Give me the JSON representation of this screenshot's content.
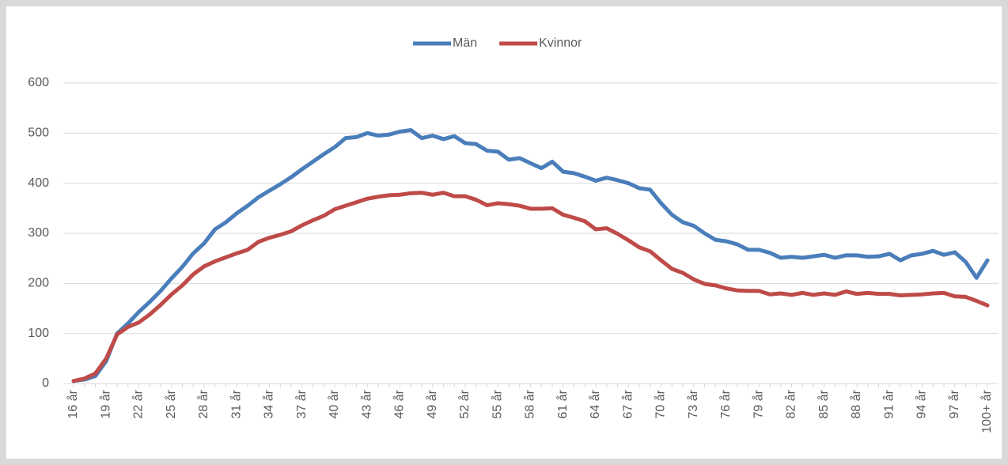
{
  "chart_data": {
    "type": "line",
    "categories": [
      "16 år",
      null,
      null,
      "19 år",
      null,
      null,
      "22 år",
      null,
      null,
      "25 år",
      null,
      null,
      "28 år",
      null,
      null,
      "31 år",
      null,
      null,
      "34 år",
      null,
      null,
      "37 år",
      null,
      null,
      "40 år",
      null,
      null,
      "43 år",
      null,
      null,
      "46 år",
      null,
      null,
      "49 år",
      null,
      null,
      "52 år",
      null,
      null,
      "55 år",
      null,
      null,
      "58 år",
      null,
      null,
      "61 år",
      null,
      null,
      "64 år",
      null,
      null,
      "67 år",
      null,
      null,
      "70 år",
      null,
      null,
      "73 år",
      null,
      null,
      "76 år",
      null,
      null,
      "79 år",
      null,
      null,
      "82 år",
      null,
      null,
      "85 år",
      null,
      null,
      "88 år",
      null,
      null,
      "91 år",
      null,
      null,
      "94 år",
      null,
      null,
      "97 år",
      null,
      null,
      "100+ år"
    ],
    "series": [
      {
        "name": "Män",
        "color": "#4a7ebb",
        "values": [
          5,
          8,
          15,
          45,
          100,
          120,
          143,
          163,
          185,
          210,
          233,
          260,
          280,
          308,
          322,
          340,
          355,
          372,
          385,
          398,
          412,
          428,
          443,
          458,
          472,
          490,
          492,
          500,
          495,
          497,
          503,
          506,
          490,
          495,
          488,
          494,
          480,
          478,
          465,
          463,
          447,
          450,
          440,
          430,
          443,
          423,
          420,
          413,
          405,
          411,
          406,
          400,
          390,
          387,
          360,
          337,
          322,
          315,
          300,
          287,
          284,
          278,
          267,
          267,
          261,
          251,
          253,
          251,
          254,
          257,
          251,
          256,
          256,
          253,
          254,
          259,
          246,
          256,
          259,
          265,
          257,
          262,
          243,
          211,
          246
        ]
      },
      {
        "name": "Kvinnor",
        "color": "#be4b48",
        "values": [
          5,
          10,
          20,
          50,
          98,
          113,
          122,
          138,
          157,
          178,
          196,
          218,
          234,
          244,
          252,
          260,
          267,
          283,
          291,
          297,
          304,
          316,
          326,
          335,
          348,
          355,
          362,
          369,
          373,
          376,
          377,
          380,
          381,
          377,
          381,
          374,
          374,
          367,
          356,
          360,
          358,
          355,
          349,
          349,
          350,
          337,
          331,
          324,
          308,
          310,
          299,
          286,
          272,
          264,
          246,
          229,
          221,
          208,
          199,
          196,
          190,
          186,
          185,
          185,
          178,
          180,
          177,
          181,
          177,
          180,
          177,
          184,
          179,
          181,
          179,
          179,
          176,
          177,
          178,
          180,
          181,
          174,
          173,
          165,
          156
        ]
      }
    ],
    "ylim": [
      0,
      600
    ],
    "yticks": [
      0,
      100,
      200,
      300,
      400,
      500,
      600
    ],
    "grid": true,
    "legend": "top"
  }
}
